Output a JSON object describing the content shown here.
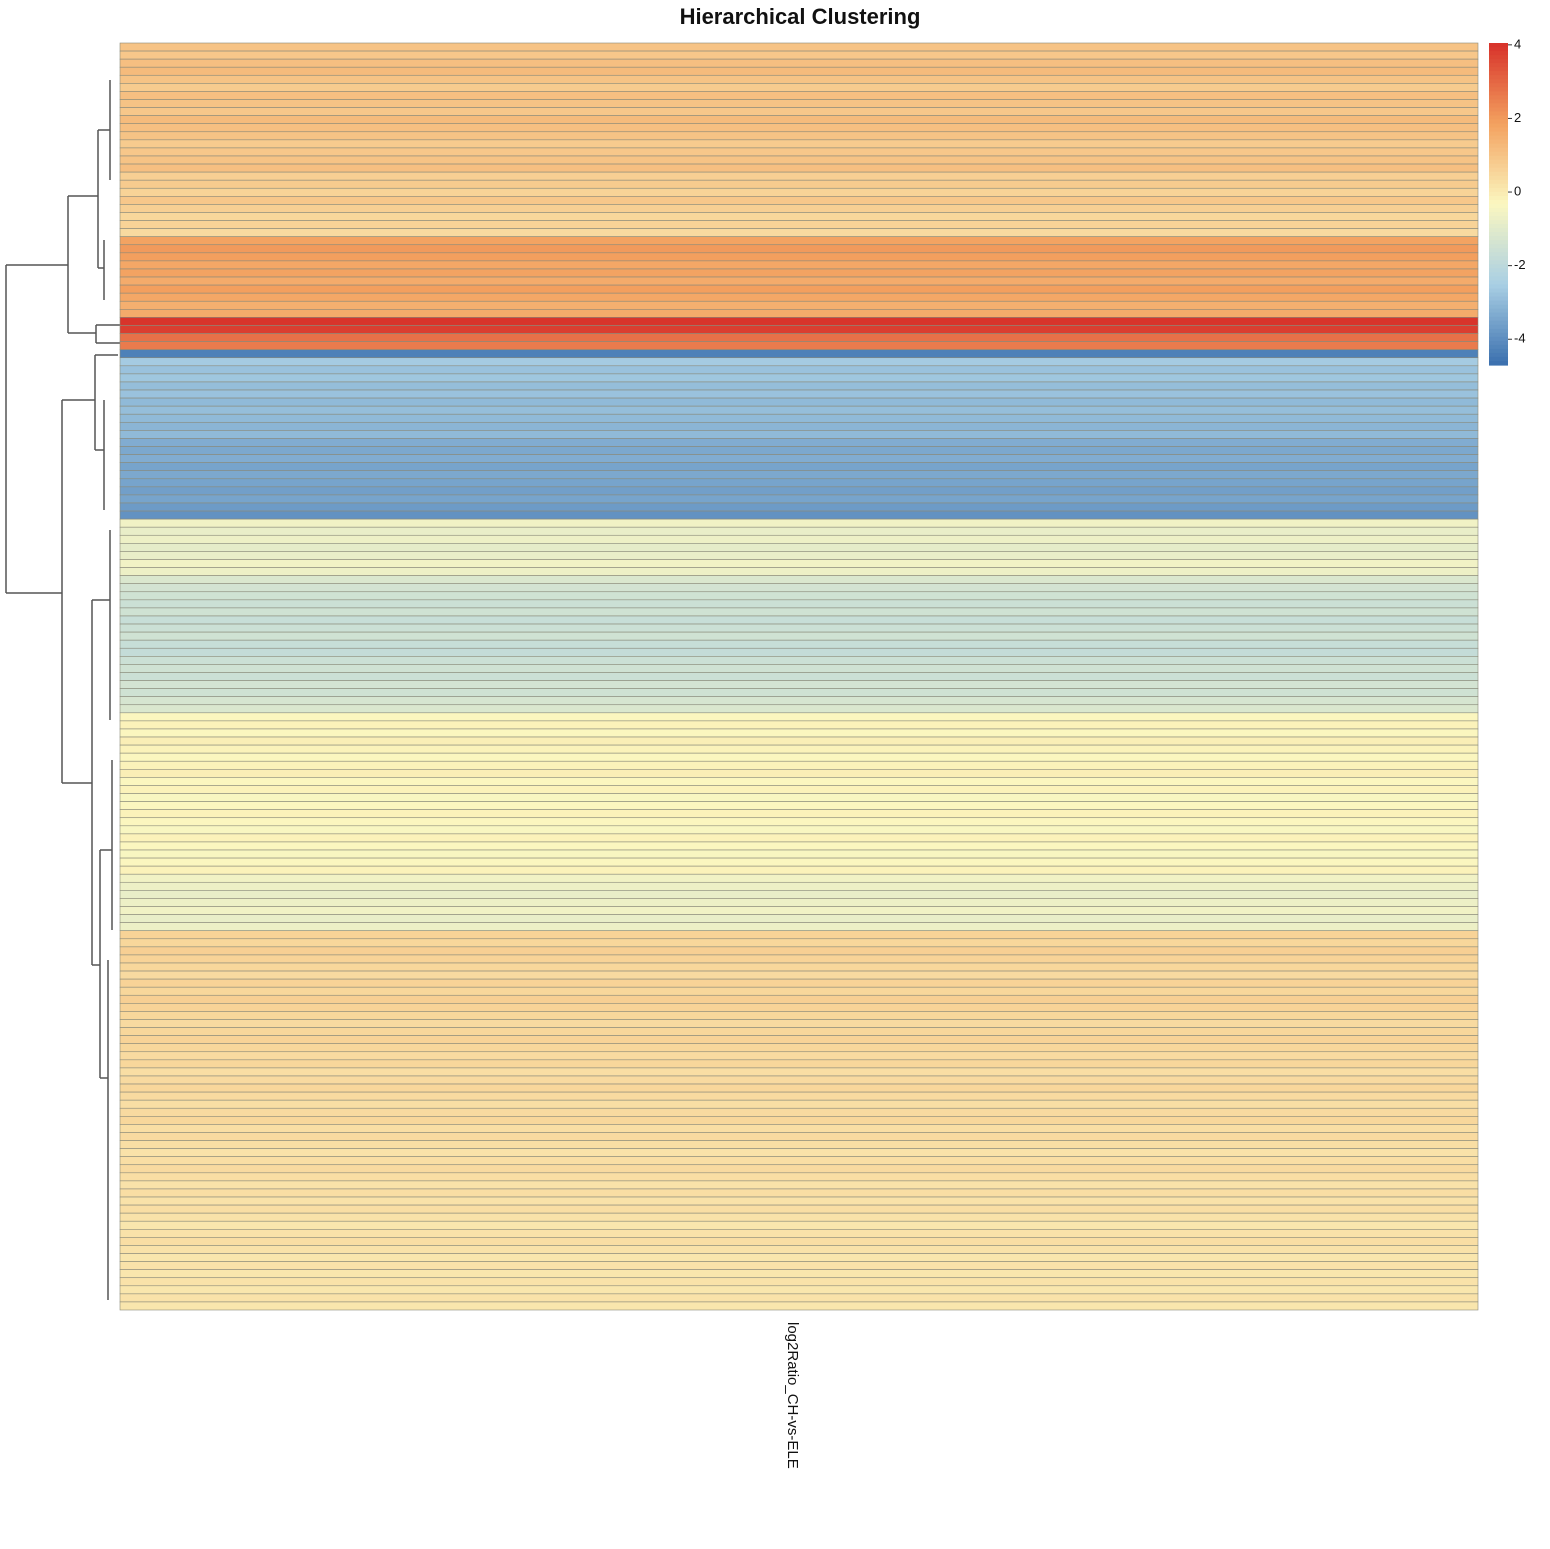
{
  "chart_data": {
    "type": "heatmap",
    "title": "Hierarchical Clustering",
    "columns": [
      "log2Ratio_CH-vs-ELE"
    ],
    "values": [
      1.0,
      0.9,
      1.1,
      1.2,
      1.0,
      0.8,
      1.1,
      1.0,
      0.9,
      1.2,
      1.1,
      1.0,
      0.8,
      0.9,
      1.0,
      1.1,
      0.7,
      0.8,
      0.6,
      0.9,
      0.7,
      0.5,
      0.6,
      0.4,
      1.8,
      2.0,
      1.9,
      1.7,
      1.8,
      1.6,
      1.9,
      1.7,
      1.5,
      1.6,
      4.0,
      3.8,
      2.8,
      2.6,
      -4.3,
      -2.6,
      -2.8,
      -2.7,
      -2.9,
      -2.8,
      -3.0,
      -2.9,
      -3.0,
      -3.1,
      -3.0,
      -3.3,
      -3.4,
      -3.3,
      -3.5,
      -3.4,
      -3.5,
      -3.6,
      -3.5,
      -3.7,
      -3.9,
      -0.6,
      -0.8,
      -0.7,
      -0.9,
      -0.8,
      -0.6,
      -0.7,
      -1.2,
      -1.4,
      -1.5,
      -1.6,
      -1.5,
      -1.7,
      -1.6,
      -1.5,
      -1.7,
      -1.8,
      -1.6,
      -1.5,
      -1.6,
      -1.4,
      -1.5,
      -1.3,
      -1.2,
      -0.3,
      -0.2,
      -0.3,
      -0.1,
      -0.2,
      -0.3,
      -0.2,
      -0.1,
      -0.3,
      -0.2,
      -0.4,
      -0.3,
      -0.2,
      -0.3,
      -0.4,
      -0.2,
      -0.3,
      -0.4,
      -0.3,
      -0.2,
      -0.6,
      -0.7,
      -0.8,
      -0.7,
      -0.6,
      -0.8,
      -0.7,
      0.6,
      0.5,
      0.7,
      0.6,
      0.5,
      0.4,
      0.6,
      0.5,
      0.7,
      0.6,
      0.5,
      0.4,
      0.5,
      0.6,
      0.5,
      0.4,
      0.5,
      0.3,
      0.4,
      0.5,
      0.4,
      0.3,
      0.4,
      0.5,
      0.3,
      0.4,
      0.3,
      0.2,
      0.3,
      0.4,
      0.3,
      0.2,
      0.3,
      0.2,
      0.3,
      0.2,
      0.1,
      0.2,
      0.3,
      0.2,
      0.1,
      0.2,
      0.1,
      0.2,
      0.1,
      0.2,
      0.1
    ],
    "colorscale": [
      "#3a6fae",
      "#a9cfe4",
      "#fbf7c0",
      "#f3a15f",
      "#d7312a"
    ],
    "zlim": [
      -4.7,
      4.05
    ],
    "zticks": [
      4,
      2,
      0,
      -2,
      -4
    ]
  }
}
